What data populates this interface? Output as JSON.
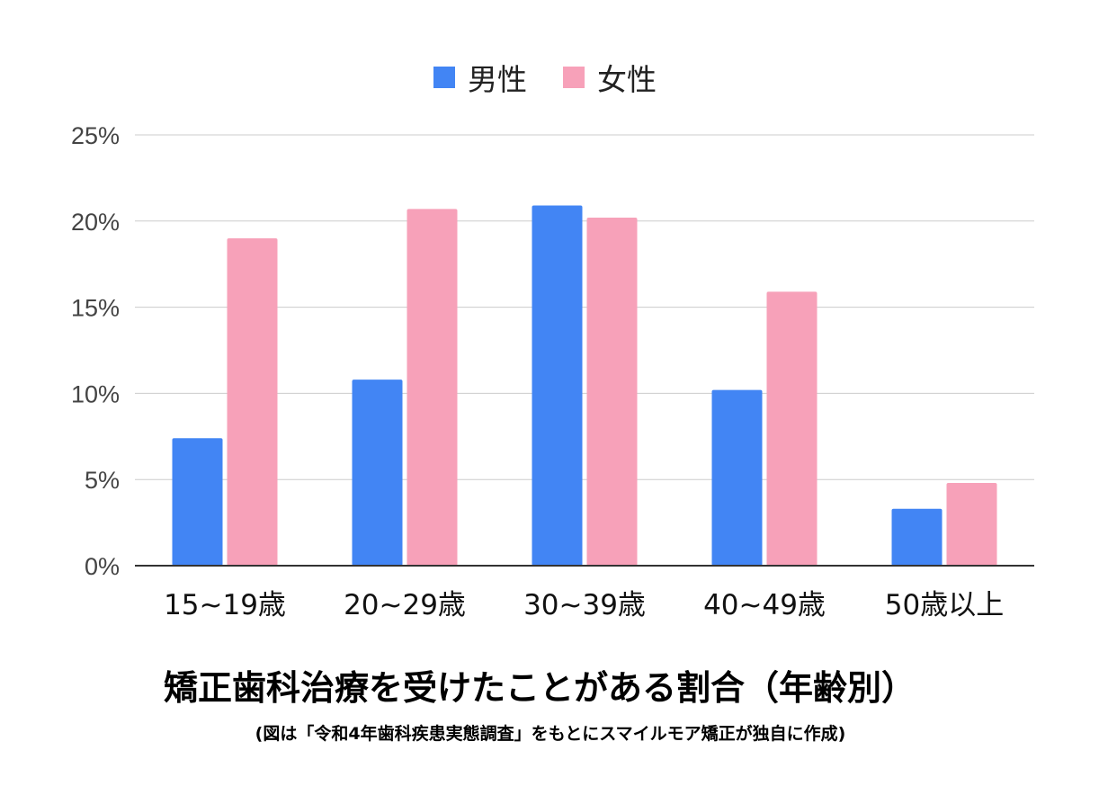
{
  "chart_data": {
    "type": "bar",
    "categories": [
      "15~19歳",
      "20~29歳",
      "30~39歳",
      "40~49歳",
      "50歳以上"
    ],
    "series": [
      {
        "name": "男性",
        "color": "#4285f4",
        "values": [
          7.4,
          10.8,
          20.9,
          10.2,
          3.3
        ]
      },
      {
        "name": "女性",
        "color": "#f7a1b9",
        "values": [
          19.0,
          20.7,
          20.2,
          15.9,
          4.8
        ]
      }
    ],
    "ylim": [
      0,
      25
    ],
    "yticks": [
      0,
      5,
      10,
      15,
      20,
      25
    ],
    "ytick_labels": [
      "0%",
      "5%",
      "10%",
      "15%",
      "20%",
      "25%"
    ],
    "grid": true,
    "legend_position": "top-center",
    "title": "矯正歯科治療を受けたことがある割合（年齢別）",
    "subtitle": "(図は「令和4年歯科疾患実態調査」をもとにスマイルモア矯正が独自に作成)"
  }
}
